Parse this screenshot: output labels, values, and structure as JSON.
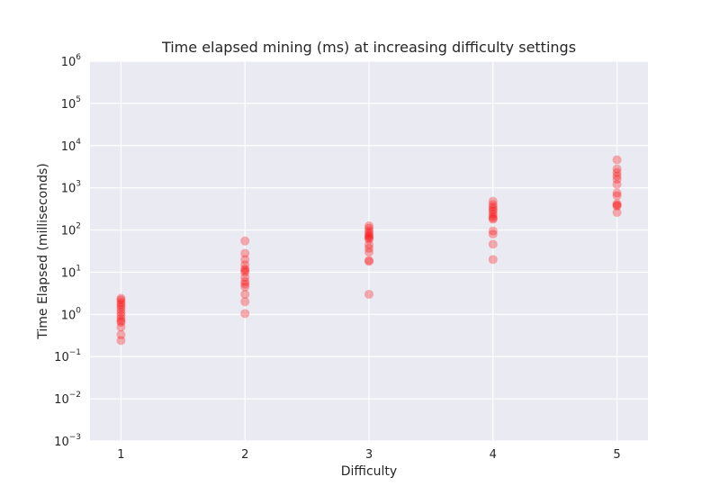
{
  "chart_data": {
    "type": "scatter",
    "title": "Time elapsed mining (ms) at increasing difficulty settings",
    "xlabel": "Difficulty",
    "ylabel": "Time Elapsed (milliseconds)",
    "x_ticks": [
      1,
      2,
      3,
      4,
      5
    ],
    "x_tick_labels": [
      "1",
      "2",
      "3",
      "4",
      "5"
    ],
    "xlim": [
      0.75,
      5.25
    ],
    "y_scale": "log",
    "ylim": [
      0.001,
      1000000
    ],
    "y_tick_labels": [
      {
        "base": "10",
        "exp": "−3",
        "value": 0.001
      },
      {
        "base": "10",
        "exp": "−2",
        "value": 0.01
      },
      {
        "base": "10",
        "exp": "−1",
        "value": 0.1
      },
      {
        "base": "10",
        "exp": "0",
        "value": 1
      },
      {
        "base": "10",
        "exp": "1",
        "value": 10
      },
      {
        "base": "10",
        "exp": "2",
        "value": 100
      },
      {
        "base": "10",
        "exp": "3",
        "value": 1000
      },
      {
        "base": "10",
        "exp": "4",
        "value": 10000
      },
      {
        "base": "10",
        "exp": "5",
        "value": 100000
      },
      {
        "base": "10",
        "exp": "6",
        "value": 1000000
      }
    ],
    "grid": true,
    "marker_color": "#ff0000",
    "marker_alpha": 0.3,
    "background_color": "#eaeaf2",
    "grid_color": "#ffffff",
    "series": [
      {
        "points": [
          {
            "x": 1,
            "y": 2.4
          },
          {
            "x": 1,
            "y": 2.2
          },
          {
            "x": 1,
            "y": 1.9
          },
          {
            "x": 1,
            "y": 1.7
          },
          {
            "x": 1,
            "y": 1.5
          },
          {
            "x": 1,
            "y": 1.3
          },
          {
            "x": 1,
            "y": 1.1
          },
          {
            "x": 1,
            "y": 0.95
          },
          {
            "x": 1,
            "y": 0.8
          },
          {
            "x": 1,
            "y": 0.7
          },
          {
            "x": 1,
            "y": 0.65
          },
          {
            "x": 1,
            "y": 0.5
          },
          {
            "x": 1,
            "y": 0.33
          },
          {
            "x": 1,
            "y": 0.24
          },
          {
            "x": 2,
            "y": 55
          },
          {
            "x": 2,
            "y": 28
          },
          {
            "x": 2,
            "y": 20
          },
          {
            "x": 2,
            "y": 15
          },
          {
            "x": 2,
            "y": 12
          },
          {
            "x": 2,
            "y": 11
          },
          {
            "x": 2,
            "y": 10
          },
          {
            "x": 2,
            "y": 7.5
          },
          {
            "x": 2,
            "y": 6
          },
          {
            "x": 2,
            "y": 5.2
          },
          {
            "x": 2,
            "y": 4.5
          },
          {
            "x": 2,
            "y": 3
          },
          {
            "x": 2,
            "y": 2
          },
          {
            "x": 2,
            "y": 1.05
          },
          {
            "x": 3,
            "y": 125
          },
          {
            "x": 3,
            "y": 110
          },
          {
            "x": 3,
            "y": 95
          },
          {
            "x": 3,
            "y": 85
          },
          {
            "x": 3,
            "y": 75
          },
          {
            "x": 3,
            "y": 70
          },
          {
            "x": 3,
            "y": 65
          },
          {
            "x": 3,
            "y": 60
          },
          {
            "x": 3,
            "y": 45
          },
          {
            "x": 3,
            "y": 37
          },
          {
            "x": 3,
            "y": 30
          },
          {
            "x": 3,
            "y": 19
          },
          {
            "x": 3,
            "y": 18
          },
          {
            "x": 3,
            "y": 3
          },
          {
            "x": 4,
            "y": 480
          },
          {
            "x": 4,
            "y": 400
          },
          {
            "x": 4,
            "y": 350
          },
          {
            "x": 4,
            "y": 310
          },
          {
            "x": 4,
            "y": 280
          },
          {
            "x": 4,
            "y": 240
          },
          {
            "x": 4,
            "y": 210
          },
          {
            "x": 4,
            "y": 190
          },
          {
            "x": 4,
            "y": 180
          },
          {
            "x": 4,
            "y": 95
          },
          {
            "x": 4,
            "y": 80
          },
          {
            "x": 4,
            "y": 46
          },
          {
            "x": 4,
            "y": 20
          },
          {
            "x": 5,
            "y": 4600
          },
          {
            "x": 5,
            "y": 2800
          },
          {
            "x": 5,
            "y": 2300
          },
          {
            "x": 5,
            "y": 1900
          },
          {
            "x": 5,
            "y": 1600
          },
          {
            "x": 5,
            "y": 1200
          },
          {
            "x": 5,
            "y": 750
          },
          {
            "x": 5,
            "y": 650
          },
          {
            "x": 5,
            "y": 420
          },
          {
            "x": 5,
            "y": 390
          },
          {
            "x": 5,
            "y": 370
          },
          {
            "x": 5,
            "y": 260
          }
        ]
      }
    ]
  }
}
